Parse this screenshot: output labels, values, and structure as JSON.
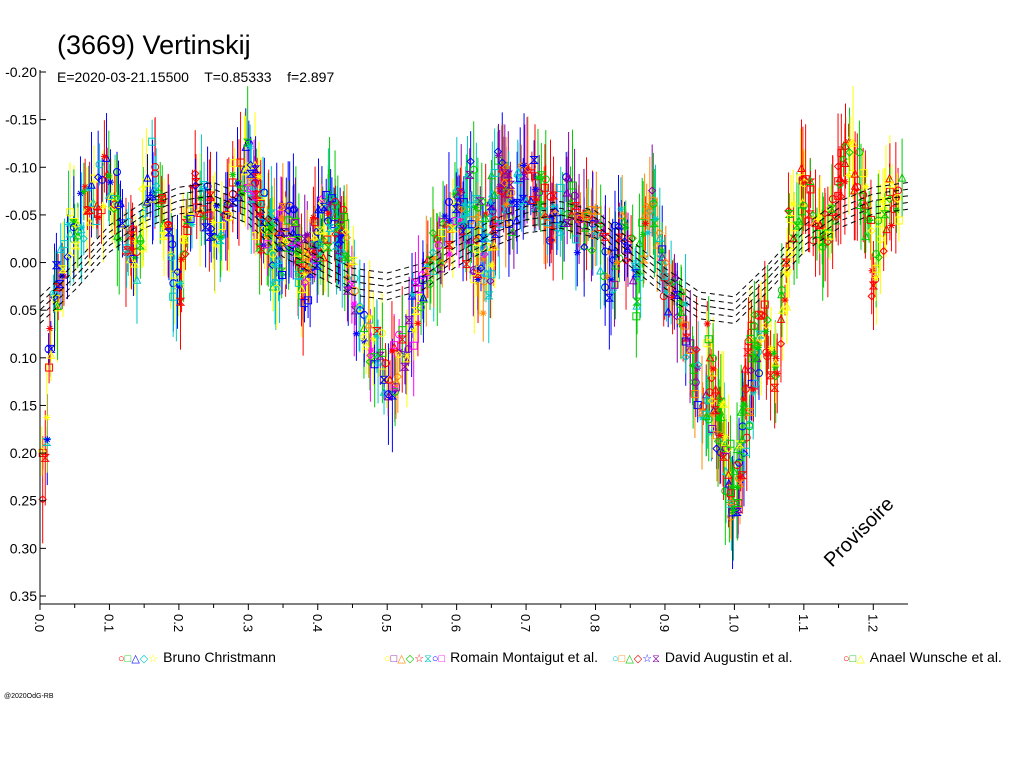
{
  "title": "(3669) Vertinskij",
  "subtitle": "E=2020-03-21.15500    T=0.85333    f=2.897",
  "watermark": "Provisoire",
  "copyright": "@2020OdG-RB",
  "chart_data": {
    "type": "scatter",
    "title": "(3669) Vertinskij",
    "xlabel": "",
    "ylabel": "",
    "xlim": [
      0.0,
      1.25
    ],
    "ylim": [
      -0.2,
      0.35
    ],
    "y_inverted": true,
    "x_ticks": [
      "0.0",
      "0.1",
      "0.2",
      "0.3",
      "0.4",
      "0.5",
      "0.6",
      "0.7",
      "0.8",
      "0.9",
      "1.0",
      "1.1",
      "1.2"
    ],
    "y_ticks": [
      "-0.20",
      "-0.15",
      "-0.10",
      "-0.05",
      "0.00",
      "0.05",
      "0.10",
      "0.15",
      "0.20",
      "0.25",
      "0.30",
      "0.35"
    ],
    "legend_position": "bottom",
    "series": [
      {
        "name": "Bruno Christmann",
        "colors": [
          "#ff0000",
          "#00cc00",
          "#0000ff",
          "#00c8c8",
          "#ffff00"
        ],
        "phase_range": [
          0.0,
          0.45
        ],
        "values": [
          [
            0.0,
            0.24
          ],
          [
            0.02,
            0.05
          ],
          [
            0.04,
            -0.02
          ],
          [
            0.06,
            -0.05
          ],
          [
            0.08,
            -0.07
          ],
          [
            0.1,
            -0.09
          ],
          [
            0.12,
            -0.04
          ],
          [
            0.14,
            0.0
          ],
          [
            0.16,
            -0.1
          ],
          [
            0.18,
            -0.04
          ],
          [
            0.2,
            0.04
          ],
          [
            0.22,
            -0.07
          ],
          [
            0.24,
            -0.06
          ],
          [
            0.26,
            -0.03
          ],
          [
            0.28,
            -0.08
          ],
          [
            0.3,
            -0.11
          ],
          [
            0.32,
            -0.07
          ],
          [
            0.34,
            0.02
          ],
          [
            0.36,
            -0.04
          ],
          [
            0.38,
            0.03
          ],
          [
            0.4,
            -0.02
          ],
          [
            0.42,
            -0.05
          ],
          [
            0.44,
            -0.02
          ]
        ]
      },
      {
        "name": "Romain Montaigut et al.",
        "colors": [
          "#ffff00",
          "#8800aa",
          "#ff8800",
          "#00cc00",
          "#ff0000",
          "#00c8c8",
          "#0000ff",
          "#ff00ff"
        ],
        "phase_range": [
          0.3,
          0.7
        ],
        "values": [
          [
            0.3,
            -0.08
          ],
          [
            0.32,
            -0.04
          ],
          [
            0.34,
            -0.02
          ],
          [
            0.36,
            -0.05
          ],
          [
            0.38,
            0.0
          ],
          [
            0.4,
            -0.03
          ],
          [
            0.42,
            -0.06
          ],
          [
            0.44,
            -0.01
          ],
          [
            0.46,
            0.06
          ],
          [
            0.48,
            0.08
          ],
          [
            0.5,
            0.12
          ],
          [
            0.52,
            0.1
          ],
          [
            0.54,
            0.05
          ],
          [
            0.56,
            0.0
          ],
          [
            0.58,
            -0.02
          ],
          [
            0.6,
            -0.06
          ],
          [
            0.62,
            -0.02
          ],
          [
            0.64,
            0.03
          ],
          [
            0.66,
            -0.06
          ],
          [
            0.68,
            -0.08
          ]
        ]
      },
      {
        "name": "David Augustin et al.",
        "colors": [
          "#00c8c8",
          "#ff8800",
          "#00cc00",
          "#ff0000",
          "#0000ff",
          "#8800aa"
        ],
        "phase_range": [
          0.6,
          1.05
        ],
        "values": [
          [
            0.6,
            -0.05
          ],
          [
            0.62,
            -0.08
          ],
          [
            0.64,
            -0.02
          ],
          [
            0.66,
            -0.1
          ],
          [
            0.68,
            -0.05
          ],
          [
            0.7,
            -0.09
          ],
          [
            0.72,
            -0.07
          ],
          [
            0.74,
            -0.04
          ],
          [
            0.76,
            -0.07
          ],
          [
            0.78,
            -0.02
          ],
          [
            0.8,
            -0.04
          ],
          [
            0.82,
            0.02
          ],
          [
            0.84,
            -0.05
          ],
          [
            0.86,
            0.03
          ],
          [
            0.88,
            -0.08
          ],
          [
            0.9,
            0.02
          ],
          [
            0.92,
            0.04
          ],
          [
            0.94,
            0.1
          ],
          [
            0.96,
            0.16
          ],
          [
            0.98,
            0.18
          ],
          [
            1.0,
            0.28
          ],
          [
            1.02,
            0.15
          ],
          [
            1.04,
            0.08
          ]
        ]
      },
      {
        "name": "Anael Wunsche et al.",
        "colors": [
          "#ff0000",
          "#00cc00",
          "#ffff00"
        ],
        "phase_range": [
          0.95,
          1.25
        ],
        "values": [
          [
            0.96,
            0.08
          ],
          [
            0.98,
            0.16
          ],
          [
            1.0,
            0.24
          ],
          [
            1.02,
            0.1
          ],
          [
            1.04,
            0.05
          ],
          [
            1.06,
            0.12
          ],
          [
            1.08,
            -0.03
          ],
          [
            1.1,
            -0.09
          ],
          [
            1.12,
            -0.02
          ],
          [
            1.14,
            -0.05
          ],
          [
            1.16,
            -0.12
          ],
          [
            1.18,
            -0.09
          ],
          [
            1.2,
            0.01
          ],
          [
            1.22,
            -0.06
          ],
          [
            1.24,
            -0.07
          ]
        ]
      }
    ],
    "fit_curve": {
      "style": "dashed",
      "values": [
        [
          0.0,
          0.05
        ],
        [
          0.05,
          0.015
        ],
        [
          0.1,
          -0.025
        ],
        [
          0.15,
          -0.05
        ],
        [
          0.2,
          -0.065
        ],
        [
          0.25,
          -0.07
        ],
        [
          0.3,
          -0.055
        ],
        [
          0.35,
          -0.02
        ],
        [
          0.4,
          0.0
        ],
        [
          0.45,
          0.02
        ],
        [
          0.5,
          0.025
        ],
        [
          0.55,
          0.015
        ],
        [
          0.6,
          -0.01
        ],
        [
          0.65,
          -0.03
        ],
        [
          0.7,
          -0.045
        ],
        [
          0.75,
          -0.05
        ],
        [
          0.8,
          -0.04
        ],
        [
          0.85,
          -0.01
        ],
        [
          0.9,
          0.02
        ],
        [
          0.95,
          0.045
        ],
        [
          1.0,
          0.05
        ],
        [
          1.05,
          0.015
        ],
        [
          1.1,
          -0.025
        ],
        [
          1.15,
          -0.05
        ],
        [
          1.2,
          -0.065
        ],
        [
          1.25,
          -0.07
        ]
      ]
    }
  }
}
